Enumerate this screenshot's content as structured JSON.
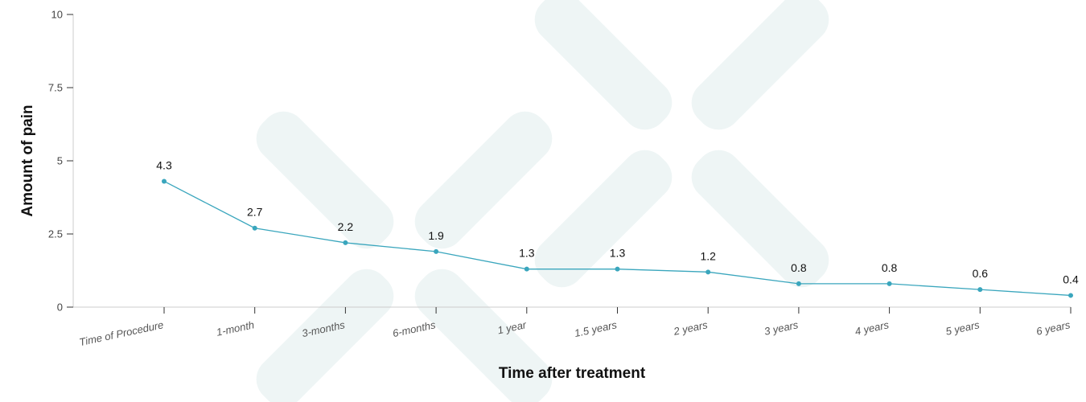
{
  "chart_data": {
    "type": "line",
    "title": "",
    "xlabel": "Time after treatment",
    "ylabel": "Amount of pain",
    "ylim": [
      0,
      10
    ],
    "yticks": [
      {
        "value": 0,
        "label": "0"
      },
      {
        "value": 2.5,
        "label": "2.5"
      },
      {
        "value": 5,
        "label": "5"
      },
      {
        "value": 7.5,
        "label": "7.5"
      },
      {
        "value": 10,
        "label": "10"
      }
    ],
    "grid": false,
    "categories": [
      "Time of Procedure",
      "1-month",
      "3-months",
      "6-months",
      "1 year",
      "1.5 years",
      "2 years",
      "3 years",
      "4 years",
      "5 years",
      "6 years"
    ],
    "series": [
      {
        "values": [
          4.3,
          2.7,
          2.2,
          1.9,
          1.3,
          1.3,
          1.2,
          0.8,
          0.8,
          0.6,
          0.4
        ],
        "data_labels": [
          "4.3",
          "2.7",
          "2.2",
          "1.9",
          "1.3",
          "1.3",
          "1.2",
          "0.8",
          "0.8",
          "0.6",
          "0.4"
        ]
      }
    ],
    "colors": {
      "line": "#3aa6bd",
      "axis": "#cccccc",
      "watermark": "#eef5f5"
    }
  }
}
